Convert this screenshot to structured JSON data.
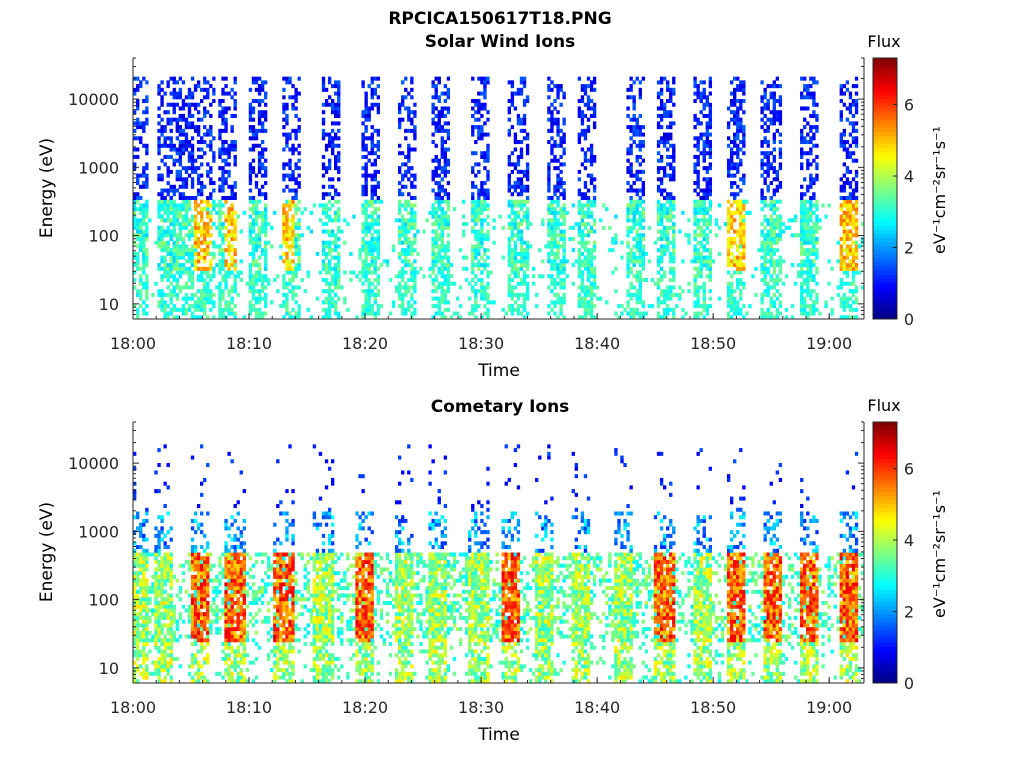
{
  "figure": {
    "file_title": "RPCICA150617T18.PNG"
  },
  "chart_data": [
    {
      "type": "heatmap",
      "title": "Solar Wind Ions",
      "xlabel": "Time",
      "ylabel": "Energy (eV)",
      "xlim": [
        "18:00",
        "19:03"
      ],
      "xticks": [
        "18:00",
        "18:10",
        "18:20",
        "18:30",
        "18:40",
        "18:50",
        "19:00"
      ],
      "ylim": [
        6,
        40000
      ],
      "yscale": "log",
      "yticks": [
        10,
        100,
        1000,
        10000
      ],
      "colorbar": {
        "title": "Flux",
        "label": "eV⁻¹cm⁻²sr⁻¹s⁻¹",
        "range": [
          0,
          7.3
        ],
        "ticks": [
          0,
          2,
          4,
          6
        ],
        "colormap": "jet"
      },
      "bursts_minutes": [
        0.5,
        3.0,
        4.6,
        6.4,
        8.2,
        10.8,
        13.6,
        17.0,
        20.4,
        23.6,
        26.6,
        30.0,
        33.2,
        36.6,
        39.0,
        43.4,
        46.0,
        49.0,
        52.0,
        55.0,
        58.2,
        61.6
      ],
      "hot_minutes": [
        6.0,
        8.8,
        13.2,
        52.0,
        61.6
      ]
    },
    {
      "type": "heatmap",
      "title": "Cometary Ions",
      "xlabel": "Time",
      "ylabel": "Energy (eV)",
      "xlim": [
        "18:00",
        "19:03"
      ],
      "xticks": [
        "18:00",
        "18:10",
        "18:20",
        "18:30",
        "18:40",
        "18:50",
        "19:00"
      ],
      "ylim": [
        6,
        40000
      ],
      "yscale": "log",
      "yticks": [
        10,
        100,
        1000,
        10000
      ],
      "colorbar": {
        "title": "Flux",
        "label": "eV⁻¹cm⁻²sr⁻¹s⁻¹",
        "range": [
          0,
          7.3
        ],
        "ticks": [
          0,
          2,
          4,
          6
        ],
        "colormap": "jet"
      },
      "bursts_minutes": [
        0.5,
        2.6,
        5.8,
        8.8,
        13.0,
        16.4,
        20.0,
        23.4,
        26.2,
        29.8,
        32.6,
        35.4,
        38.6,
        42.2,
        45.8,
        49.0,
        52.0,
        55.2,
        58.2,
        61.6
      ],
      "hot_minutes": [
        5.8,
        8.8,
        13.0,
        20.0,
        32.6,
        45.8,
        52.0,
        55.2,
        58.2,
        61.6
      ]
    }
  ]
}
